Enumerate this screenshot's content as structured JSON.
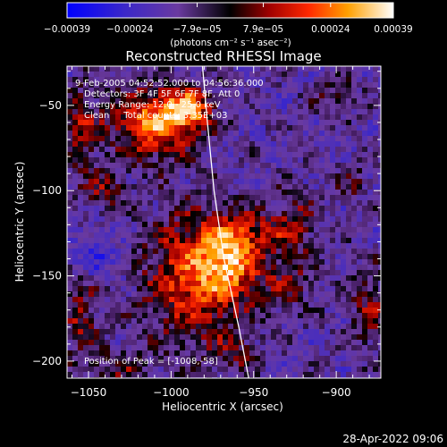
{
  "chart_data": {
    "type": "heatmap",
    "title": "Reconstructed RHESSI Image",
    "xlabel": "Heliocentric X (arcsec)",
    "ylabel": "Heliocentric Y (arcsec)",
    "xlim": [
      -1063,
      -873
    ],
    "ylim": [
      -210,
      -27
    ],
    "x_ticks": [
      {
        "value": -1050,
        "label": "−1050"
      },
      {
        "value": -1000,
        "label": "−1000"
      },
      {
        "value": -950,
        "label": "−950"
      },
      {
        "value": -900,
        "label": "−900"
      }
    ],
    "y_ticks": [
      {
        "value": -50,
        "label": "−50"
      },
      {
        "value": -100,
        "label": "−100"
      },
      {
        "value": -150,
        "label": "−150"
      },
      {
        "value": -200,
        "label": "−200"
      }
    ],
    "colorbar": {
      "range": [
        -0.00039,
        0.00039
      ],
      "ticks": [
        {
          "value": -0.00039,
          "label": "−0.00039"
        },
        {
          "value": -0.00024,
          "label": "−0.00024"
        },
        {
          "value": -7.9e-05,
          "label": "−7.9e−05"
        },
        {
          "value": 7.9e-05,
          "label": "7.9e−05"
        },
        {
          "value": 0.00024,
          "label": "0.00024"
        },
        {
          "value": 0.00039,
          "label": "0.00039"
        }
      ],
      "units_label": "(photons cm⁻² s⁻¹ asec⁻²)"
    },
    "annotations": [
      "9-Feb-2005 04:52:52.000 to 04:56:36.000",
      "Detectors: 3F 4F 5F 6F 7F 8F, Att 0",
      "Energy Range: 12.0 - 25.0 keV",
      "Clean     Total counts: 3.35E+03",
      "Position of Peak = [-1008,-58]"
    ],
    "limb_curve": [
      [
        -981,
        -27
      ],
      [
        -978,
        -60
      ],
      [
        -974,
        -100
      ],
      [
        -968,
        -140
      ],
      [
        -959,
        -180
      ],
      [
        -953,
        -210
      ]
    ],
    "sources": [
      {
        "x": -1010,
        "y": -60,
        "sx": 18,
        "sy": 14,
        "amp": 0.00036
      },
      {
        "x": -990,
        "y": -52,
        "sx": 10,
        "sy": 8,
        "amp": 0.0003
      },
      {
        "x": -985,
        "y": -150,
        "sx": 22,
        "sy": 26,
        "amp": 0.0003
      },
      {
        "x": -965,
        "y": -140,
        "sx": 12,
        "sy": 14,
        "amp": 0.00028
      },
      {
        "x": -1055,
        "y": -65,
        "sx": 8,
        "sy": 18,
        "amp": 0.00018
      },
      {
        "x": -1040,
        "y": -100,
        "sx": 10,
        "sy": 8,
        "amp": 0.00014
      },
      {
        "x": -1055,
        "y": -175,
        "sx": 8,
        "sy": 20,
        "amp": 0.00016
      },
      {
        "x": -1030,
        "y": -205,
        "sx": 14,
        "sy": 8,
        "amp": 0.00012
      },
      {
        "x": -950,
        "y": -125,
        "sx": 14,
        "sy": 8,
        "amp": 0.00014
      },
      {
        "x": -925,
        "y": -120,
        "sx": 10,
        "sy": 14,
        "amp": 0.00016
      },
      {
        "x": -930,
        "y": -155,
        "sx": 12,
        "sy": 10,
        "amp": 0.00013
      },
      {
        "x": -880,
        "y": -170,
        "sx": 8,
        "sy": 16,
        "amp": 0.00016
      },
      {
        "x": -890,
        "y": -95,
        "sx": 8,
        "sy": 8,
        "amp": 0.0001
      },
      {
        "x": -900,
        "y": -45,
        "sx": 10,
        "sy": 8,
        "amp": 0.0001
      },
      {
        "x": -960,
        "y": -195,
        "sx": 10,
        "sy": 8,
        "amp": 0.00011
      },
      {
        "x": -1045,
        "y": -140,
        "sx": 12,
        "sy": 10,
        "amp": -0.00012
      }
    ]
  },
  "footer": {
    "date_stamp": "28-Apr-2022 09:06"
  }
}
